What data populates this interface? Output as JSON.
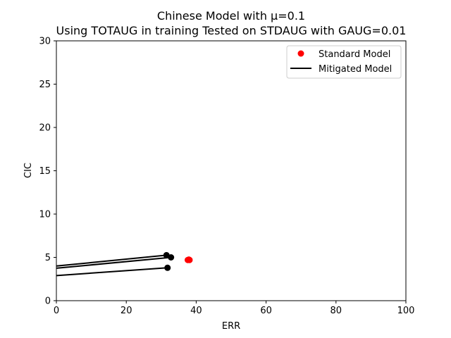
{
  "chart_data": {
    "type": "scatter",
    "title": "Chinese Model with μ=0.1",
    "subtitle": "Using TOTAUG in training Tested on STDAUG with GAUG=0.01",
    "xlabel": "ERR",
    "ylabel": "CIC",
    "xlim": [
      0,
      100
    ],
    "ylim": [
      0,
      30
    ],
    "xticks": [
      0,
      20,
      40,
      60,
      80,
      100
    ],
    "yticks": [
      0,
      5,
      10,
      15,
      20,
      25,
      30
    ],
    "grid": false,
    "legend_position": "top-right",
    "series": [
      {
        "name": "Standard Model",
        "kind": "scatter",
        "color": "#ff0000",
        "points": [
          [
            37.6,
            4.7
          ],
          [
            37.9,
            4.75
          ],
          [
            38.1,
            4.7
          ]
        ]
      },
      {
        "name": "Mitigated Model",
        "kind": "line",
        "color": "#000000",
        "lines": [
          [
            [
              0,
              4.0
            ],
            [
              31.5,
              5.25
            ]
          ],
          [
            [
              0,
              3.75
            ],
            [
              32.8,
              5.0
            ]
          ],
          [
            [
              0,
              2.9
            ],
            [
              31.8,
              3.8
            ]
          ]
        ],
        "points": [
          [
            31.5,
            5.25
          ],
          [
            32.8,
            5.0
          ],
          [
            31.8,
            3.8
          ]
        ]
      }
    ]
  }
}
